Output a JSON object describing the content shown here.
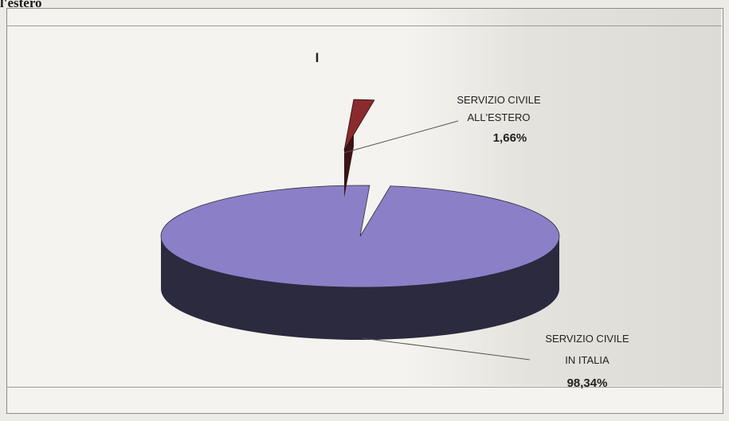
{
  "page": {
    "heading": "l'estero",
    "chart_marker": "I"
  },
  "chart_data": {
    "type": "pie",
    "title": "",
    "slices": [
      {
        "label_line1": "SERVIZIO CIVILE",
        "label_line2": "IN ITALIA",
        "value": 98.34,
        "value_label": "98,34%",
        "color": "#8b80c8",
        "side_color": "#2b2a3e"
      },
      {
        "label_line1": "SERVIZIO CIVILE",
        "label_line2": "ALL'ESTERO",
        "value": 1.66,
        "value_label": "1,66%",
        "color": "#8a2a2e",
        "side_color": "#3a1416"
      }
    ],
    "exploded": "ALL'ESTERO",
    "legend": "none"
  }
}
